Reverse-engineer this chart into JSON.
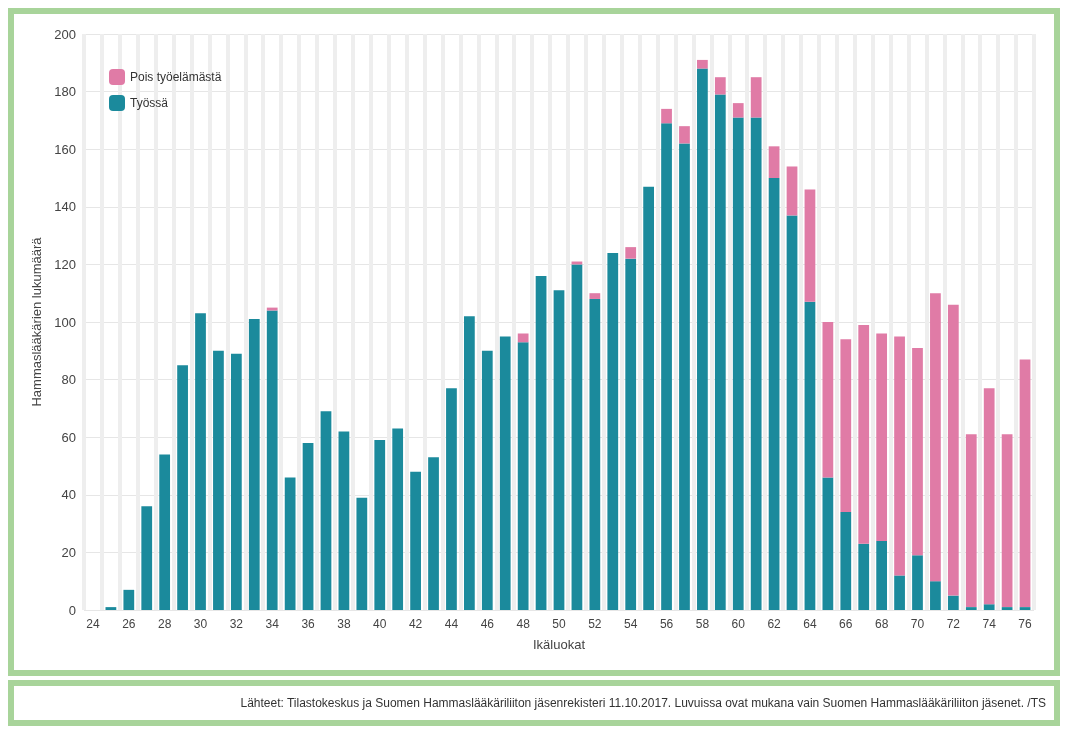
{
  "chart_data": {
    "type": "bar",
    "stacked": true,
    "xlabel": "Ikäluokat",
    "ylabel": "Hammaslääkärien lukumäärä",
    "categories": [
      "24",
      null,
      "26",
      null,
      "28",
      null,
      "30",
      null,
      "32",
      null,
      "34",
      null,
      "36",
      null,
      "38",
      null,
      "40",
      null,
      "42",
      null,
      "44",
      null,
      "46",
      null,
      "48",
      null,
      "50",
      null,
      "52",
      null,
      "54",
      null,
      "56",
      null,
      "58",
      null,
      "60",
      null,
      "62",
      null,
      "64",
      null,
      "66",
      null,
      "68",
      null,
      "70",
      null,
      "72",
      null,
      "74",
      null,
      "76"
    ],
    "series": [
      {
        "name": "Työssä",
        "color": "#1b8a9c",
        "values": [
          0,
          1,
          7,
          36,
          54,
          85,
          103,
          90,
          89,
          101,
          104,
          46,
          58,
          69,
          62,
          39,
          59,
          63,
          48,
          53,
          77,
          102,
          90,
          95,
          93,
          116,
          111,
          120,
          108,
          124,
          122,
          147,
          169,
          162,
          188,
          179,
          171,
          171,
          150,
          137,
          107,
          46,
          34,
          23,
          24,
          12,
          19,
          10,
          5,
          1,
          2,
          1,
          1
        ]
      },
      {
        "name": "Pois työelämästä",
        "color": "#e07ba6",
        "values": [
          0,
          0,
          0,
          0,
          0,
          0,
          0,
          0,
          0,
          0,
          1,
          0,
          0,
          0,
          0,
          0,
          0,
          0,
          0,
          0,
          0,
          0,
          0,
          0,
          3,
          0,
          0,
          1,
          2,
          0,
          4,
          0,
          5,
          6,
          3,
          6,
          5,
          14,
          11,
          17,
          39,
          54,
          60,
          76,
          72,
          83,
          72,
          100,
          101,
          60,
          75,
          60,
          86
        ]
      }
    ],
    "ylim": [
      0,
      200
    ],
    "yticks": [
      0,
      20,
      40,
      60,
      80,
      100,
      120,
      140,
      160,
      180,
      200
    ],
    "grid": true,
    "legend": "top left",
    "annotations": [
      "Lähteet: Tilastokeskus ja Suomen Hammaslääkäriliiton jäsenrekisteri 11.10.2017. Luvuissa ovat mukana vain Suomen Hammaslääkäriliiton jäsenet. /TS"
    ]
  }
}
